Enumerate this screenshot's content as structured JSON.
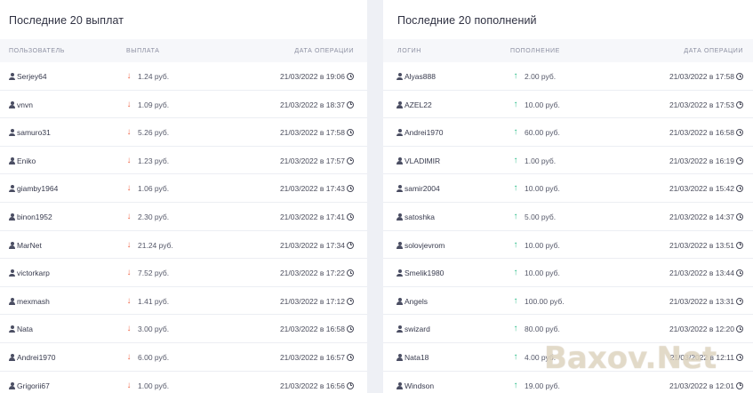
{
  "payouts": {
    "title": "Последние 20 выплат",
    "headers": {
      "user": "ПОЛЬЗОВАТЕЛЬ",
      "amount": "ВЫПЛАТА",
      "date": "ДАТА ОПЕРАЦИИ"
    },
    "arrow_color": "#ef6a4c",
    "rows": [
      {
        "user": "Serjey64",
        "amount": "1.24 руб.",
        "date": "21/03/2022 в 19:06"
      },
      {
        "user": "vnvn",
        "amount": "1.09 руб.",
        "date": "21/03/2022 в 18:37"
      },
      {
        "user": "samuro31",
        "amount": "5.26 руб.",
        "date": "21/03/2022 в 17:58"
      },
      {
        "user": "Eniko",
        "amount": "1.23 руб.",
        "date": "21/03/2022 в 17:57"
      },
      {
        "user": "giamby1964",
        "amount": "1.06 руб.",
        "date": "21/03/2022 в 17:43"
      },
      {
        "user": "binon1952",
        "amount": "2.30 руб.",
        "date": "21/03/2022 в 17:41"
      },
      {
        "user": "MarNet",
        "amount": "21.24 руб.",
        "date": "21/03/2022 в 17:34"
      },
      {
        "user": "victorkarp",
        "amount": "7.52 руб.",
        "date": "21/03/2022 в 17:22"
      },
      {
        "user": "mexmash",
        "amount": "1.41 руб.",
        "date": "21/03/2022 в 17:12"
      },
      {
        "user": "Nata",
        "amount": "3.00 руб.",
        "date": "21/03/2022 в 16:58"
      },
      {
        "user": "Andrei1970",
        "amount": "6.00 руб.",
        "date": "21/03/2022 в 16:57"
      },
      {
        "user": "Grigorii67",
        "amount": "1.00 руб.",
        "date": "21/03/2022 в 16:56"
      }
    ]
  },
  "deposits": {
    "title": "Последние 20 пополнений",
    "headers": {
      "user": "ЛОГИН",
      "amount": "ПОПОЛНЕНИЕ",
      "date": "ДАТА ОПЕРАЦИИ"
    },
    "arrow_color": "#2ebd8a",
    "rows": [
      {
        "user": "Alyas888",
        "amount": "2.00 руб.",
        "date": "21/03/2022 в 17:58"
      },
      {
        "user": "AZEL22",
        "amount": "10.00 руб.",
        "date": "21/03/2022 в 17:53"
      },
      {
        "user": "Andrei1970",
        "amount": "60.00 руб.",
        "date": "21/03/2022 в 16:58"
      },
      {
        "user": "VLADIMIR",
        "amount": "1.00 руб.",
        "date": "21/03/2022 в 16:19"
      },
      {
        "user": "samir2004",
        "amount": "10.00 руб.",
        "date": "21/03/2022 в 15:42"
      },
      {
        "user": "satoshka",
        "amount": "5.00 руб.",
        "date": "21/03/2022 в 14:37"
      },
      {
        "user": "solovjevrom",
        "amount": "10.00 руб.",
        "date": "21/03/2022 в 13:51"
      },
      {
        "user": "Smelik1980",
        "amount": "10.00 руб.",
        "date": "21/03/2022 в 13:44"
      },
      {
        "user": "Angels",
        "amount": "100.00 руб.",
        "date": "21/03/2022 в 13:31"
      },
      {
        "user": "swizard",
        "amount": "80.00 руб.",
        "date": "21/03/2022 в 12:20"
      },
      {
        "user": "Nata18",
        "amount": "4.00 руб.",
        "date": "21/03/2022 в 12:11"
      },
      {
        "user": "Windson",
        "amount": "19.00 руб.",
        "date": "21/03/2022 в 12:01"
      }
    ]
  },
  "icons": {
    "user": "user-icon",
    "clock": "clock-icon",
    "down": "arrow-down-icon",
    "up": "arrow-up-icon"
  },
  "watermark": "Baxov.Net"
}
